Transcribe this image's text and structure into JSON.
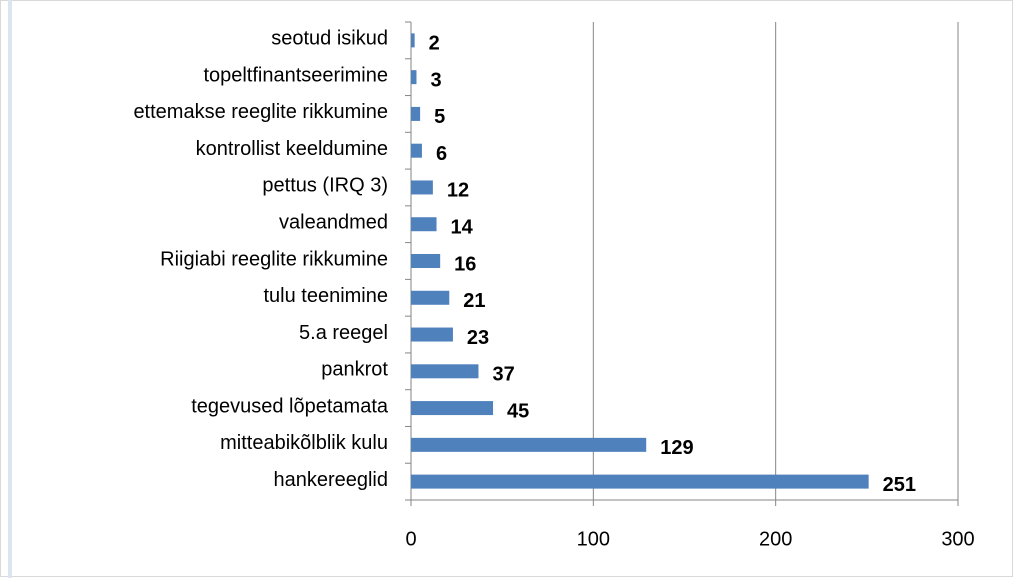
{
  "chart_data": {
    "type": "bar",
    "orientation": "horizontal",
    "categories": [
      "seotud isikud",
      "topeltfinantseerimine",
      "ettemakse reeglite rikkumine",
      "kontrollist keeldumine",
      "pettus (IRQ 3)",
      "valeandmed",
      "Riigiabi reeglite rikkumine",
      "tulu teenimine",
      "5.a reegel",
      "pankrot",
      "tegevused lõpetamata",
      "mitteabikõlblik kulu",
      "hankereeglid"
    ],
    "values": [
      2,
      3,
      5,
      6,
      12,
      14,
      16,
      21,
      23,
      37,
      45,
      129,
      251
    ],
    "color": "#4f81bd",
    "xlim": [
      0,
      300
    ],
    "xticks": [
      0,
      100,
      200,
      300
    ],
    "grid": true
  }
}
